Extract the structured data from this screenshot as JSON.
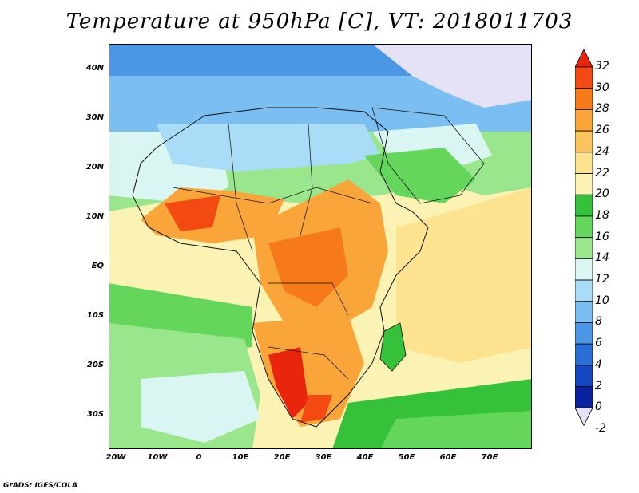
{
  "title": "Temperature at 950hPa [C], VT: 2018011703",
  "footer": "GrADS: IGES/COLA",
  "axes": {
    "y_ticks": [
      "40N",
      "30N",
      "20N",
      "10N",
      "EQ",
      "10S",
      "20S",
      "30S"
    ],
    "x_ticks": [
      "20W",
      "10W",
      "0",
      "10E",
      "20E",
      "30E",
      "40E",
      "50E",
      "60E",
      "70E"
    ]
  },
  "colorbar": {
    "labels": [
      "32",
      "30",
      "28",
      "26",
      "24",
      "22",
      "20",
      "18",
      "16",
      "14",
      "12",
      "10",
      "8",
      "6",
      "4",
      "2",
      "0",
      "-2"
    ],
    "colors": [
      "#e8260e",
      "#f24a12",
      "#f77a1a",
      "#faa53a",
      "#fbc45e",
      "#fde38f",
      "#fbf3b4",
      "#35c23a",
      "#64d65c",
      "#9ae68c",
      "#d9f6f2",
      "#a9ddf7",
      "#7bbef2",
      "#4b97e6",
      "#2a6fd8",
      "#1448c0",
      "#0822a0",
      "#0a1070"
    ],
    "units": "C"
  },
  "colors": {
    "ocean_warm": "#fbf3b4",
    "ocean_cool": "#9ae68c",
    "land_hot": "#faa53a",
    "land_cool": "#7bbef2"
  }
}
